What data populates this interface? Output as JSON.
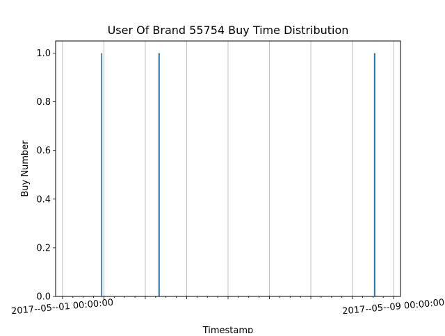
{
  "chart_data": {
    "type": "bar",
    "title": "User Of Brand 55754 Buy Time Distribution",
    "xlabel": "Timestamp",
    "ylabel": "Buy Number",
    "x_axis_type": "datetime",
    "xlim": [
      "2017-04-30T20:00:00",
      "2017-05-09T04:00:00"
    ],
    "ylim": [
      0,
      1.05
    ],
    "x_tick_labels": [
      {
        "value": "2017-05-01T00:00:00",
        "label": "2017--05--01 00:00:00"
      },
      {
        "value": "2017-05-09T00:00:00",
        "label": "2017--05--09 00:00:00"
      }
    ],
    "y_ticks": [
      0.0,
      0.2,
      0.4,
      0.6,
      0.8,
      1.0
    ],
    "y_tick_labels": [
      "0.0",
      "0.2",
      "0.4",
      "0.6",
      "0.8",
      "1.0"
    ],
    "x_gridlines": [
      "2017-05-01T00:00:00",
      "2017-05-02T00:00:00",
      "2017-05-03T00:00:00",
      "2017-05-04T00:00:00",
      "2017-05-05T00:00:00",
      "2017-05-06T00:00:00",
      "2017-05-07T00:00:00",
      "2017-05-08T00:00:00",
      "2017-05-09T00:00:00"
    ],
    "bars": [
      {
        "time": "2017-05-01T22:40:00",
        "value": 1,
        "color": "#4b87b6"
      },
      {
        "time": "2017-05-03T08:00:00",
        "value": 1,
        "color": "#1f77b4"
      },
      {
        "time": "2017-05-08T13:00:00",
        "value": 1,
        "color": "#1f77b4"
      }
    ],
    "grid": "x",
    "legend": "none"
  }
}
